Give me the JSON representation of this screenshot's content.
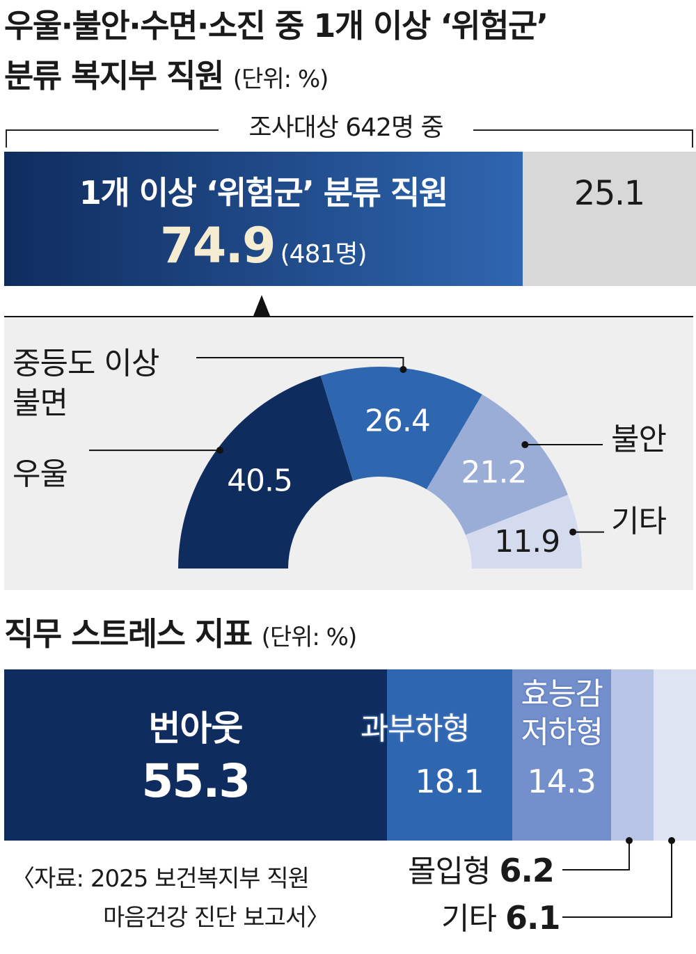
{
  "section1": {
    "title_line1": "우울·불안·수면·소진 중 1개 이상 ‘위험군’",
    "title_line2": "분류 복지부 직원",
    "unit": "(단위: %)",
    "survey_note": "조사대상 642명 중"
  },
  "section2": {
    "title": "직무 스트레스 지표",
    "unit": "(단위: %)"
  },
  "source": {
    "line1": "〈자료: 2025 보건복지부 직원",
    "line2": "마음건강 진단 보고서〉"
  },
  "colors": {
    "navy": "#0f2c5e",
    "blue": "#2f66b0",
    "light_blue": "#9aadd7",
    "pale_blue": "#d4dbef",
    "gray": "#d8d8d8",
    "panel": "#efefef",
    "accent_cream": "#f5ecd2"
  },
  "chart_data": [
    {
      "type": "bar",
      "orientation": "horizontal-stacked",
      "total_label": "조사대상 642명 중",
      "segments": [
        {
          "label": "1개 이상 ‘위험군’ 분류 직원",
          "value": 74.9,
          "count_label": "(481명)"
        },
        {
          "label": "",
          "value": 25.1
        }
      ]
    },
    {
      "type": "pie",
      "shape": "half-donut",
      "slices": [
        {
          "label": "우울",
          "value": 40.5
        },
        {
          "label": "중등도 이상 불면",
          "value": 26.4
        },
        {
          "label": "불안",
          "value": 21.2
        },
        {
          "label": "기타",
          "value": 11.9
        }
      ]
    },
    {
      "type": "bar",
      "orientation": "horizontal-stacked",
      "title": "직무 스트레스 지표",
      "segments": [
        {
          "label": "번아웃",
          "value": 55.3
        },
        {
          "label": "과부하형",
          "value": 18.1
        },
        {
          "label": "효능감 저하형",
          "value": 14.3
        },
        {
          "label": "몰입형",
          "value": 6.2
        },
        {
          "label": "기타",
          "value": 6.1
        }
      ]
    }
  ]
}
